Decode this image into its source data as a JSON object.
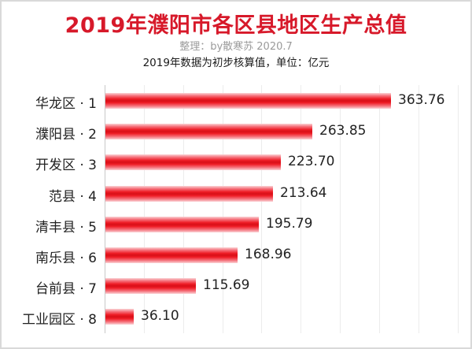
{
  "title": "2019年濮阳市各区县地区生产总值",
  "subtitle": "整理：by散寒苏 2020.7",
  "note": "2019年数据为初步核算值，单位：亿元",
  "colors": {
    "title": "#d7192a",
    "bar": "#ee1c25",
    "grid": "#ececec"
  },
  "chart_data": {
    "type": "bar",
    "orientation": "horizontal",
    "title": "2019年濮阳市各区县地区生产总值",
    "subtitle": "整理：by散寒苏 2020.7",
    "annotation": "2019年数据为初步核算值，单位：亿元",
    "xlabel": "",
    "ylabel": "",
    "unit": "亿元",
    "categories": [
      "华龙区 · 1",
      "濮阳县 · 2",
      "开发区 · 3",
      "范县 · 4",
      "清丰县 · 5",
      "南乐县 · 6",
      "台前县 · 7",
      "工业园区 · 8"
    ],
    "values": [
      363.76,
      263.85,
      223.7,
      213.64,
      195.79,
      168.96,
      115.69,
      36.1
    ],
    "value_labels": [
      "363.76",
      "263.85",
      "223.70",
      "213.64",
      "195.79",
      "168.96",
      "115.69",
      "36.10"
    ],
    "xlim": [
      0,
      450
    ],
    "grid": {
      "vertical": true,
      "step": 50
    },
    "legend": null,
    "show_x_tick_labels": false
  }
}
